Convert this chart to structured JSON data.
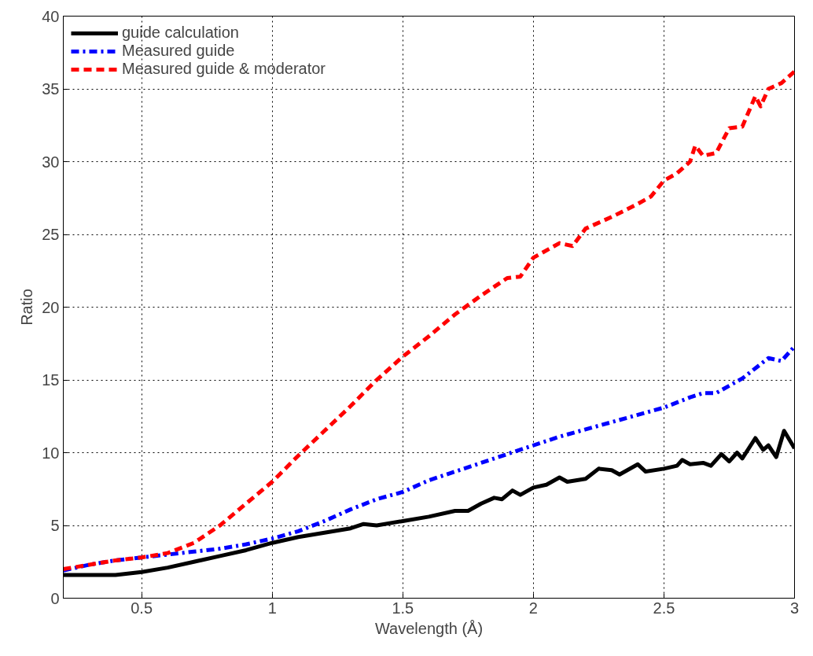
{
  "chart_data": {
    "type": "line",
    "xlabel": "Wavelength (Å)",
    "ylabel": "Ratio",
    "xlim": [
      0.2,
      3
    ],
    "ylim": [
      0,
      40
    ],
    "xticks": [
      0.5,
      1,
      1.5,
      2,
      2.5,
      3
    ],
    "yticks": [
      0,
      5,
      10,
      15,
      20,
      25,
      30,
      35,
      40
    ],
    "grid": true,
    "legend": "top left",
    "series": [
      {
        "name": "guide calculation",
        "color": "#000000",
        "line_style": "solid",
        "x": [
          0.2,
          0.4,
          0.5,
          0.6,
          0.7,
          0.8,
          0.9,
          1.0,
          1.1,
          1.2,
          1.3,
          1.35,
          1.4,
          1.5,
          1.6,
          1.7,
          1.75,
          1.8,
          1.85,
          1.88,
          1.92,
          1.95,
          2.0,
          2.05,
          2.1,
          2.13,
          2.2,
          2.25,
          2.3,
          2.33,
          2.4,
          2.43,
          2.5,
          2.55,
          2.57,
          2.6,
          2.65,
          2.68,
          2.72,
          2.75,
          2.78,
          2.8,
          2.85,
          2.88,
          2.9,
          2.93,
          2.96,
          3.0
        ],
        "values": [
          1.6,
          1.6,
          1.8,
          2.1,
          2.5,
          2.9,
          3.3,
          3.8,
          4.2,
          4.5,
          4.8,
          5.1,
          5.0,
          5.3,
          5.6,
          6.0,
          6.0,
          6.5,
          6.9,
          6.8,
          7.4,
          7.1,
          7.6,
          7.8,
          8.3,
          8.0,
          8.2,
          8.9,
          8.8,
          8.5,
          9.2,
          8.7,
          8.9,
          9.1,
          9.5,
          9.2,
          9.3,
          9.1,
          9.9,
          9.4,
          10.0,
          9.6,
          11.0,
          10.2,
          10.5,
          9.7,
          11.5,
          10.3
        ]
      },
      {
        "name": "Measured guide",
        "color": "#0000ff",
        "line_style": "dashdot",
        "x": [
          0.2,
          0.3,
          0.4,
          0.5,
          0.6,
          0.7,
          0.8,
          0.9,
          1.0,
          1.1,
          1.2,
          1.3,
          1.4,
          1.5,
          1.6,
          1.7,
          1.8,
          1.9,
          2.0,
          2.1,
          2.2,
          2.3,
          2.4,
          2.5,
          2.6,
          2.65,
          2.7,
          2.8,
          2.85,
          2.9,
          2.95,
          3.0
        ],
        "values": [
          1.9,
          2.3,
          2.6,
          2.8,
          3.0,
          3.2,
          3.4,
          3.7,
          4.1,
          4.6,
          5.3,
          6.1,
          6.8,
          7.3,
          8.1,
          8.7,
          9.3,
          9.9,
          10.5,
          11.1,
          11.6,
          12.1,
          12.6,
          13.1,
          13.8,
          14.1,
          14.1,
          15.1,
          15.8,
          16.5,
          16.3,
          17.3
        ]
      },
      {
        "name": "Measured guide & moderator",
        "color": "#ff0000",
        "line_style": "dashed",
        "x": [
          0.2,
          0.3,
          0.4,
          0.5,
          0.6,
          0.7,
          0.8,
          0.9,
          1.0,
          1.1,
          1.2,
          1.3,
          1.4,
          1.5,
          1.6,
          1.7,
          1.8,
          1.9,
          1.95,
          2.0,
          2.1,
          2.15,
          2.2,
          2.3,
          2.4,
          2.45,
          2.5,
          2.55,
          2.6,
          2.62,
          2.65,
          2.7,
          2.75,
          2.8,
          2.85,
          2.87,
          2.9,
          2.95,
          3.0
        ],
        "values": [
          2.0,
          2.3,
          2.6,
          2.8,
          3.1,
          3.8,
          5.0,
          6.5,
          8.0,
          9.8,
          11.5,
          13.2,
          15.0,
          16.6,
          18.0,
          19.5,
          20.8,
          22.0,
          22.1,
          23.4,
          24.4,
          24.2,
          25.4,
          26.2,
          27.1,
          27.6,
          28.7,
          29.2,
          30.0,
          31.1,
          30.4,
          30.6,
          32.3,
          32.4,
          34.5,
          33.8,
          35.0,
          35.4,
          36.2
        ]
      }
    ]
  }
}
